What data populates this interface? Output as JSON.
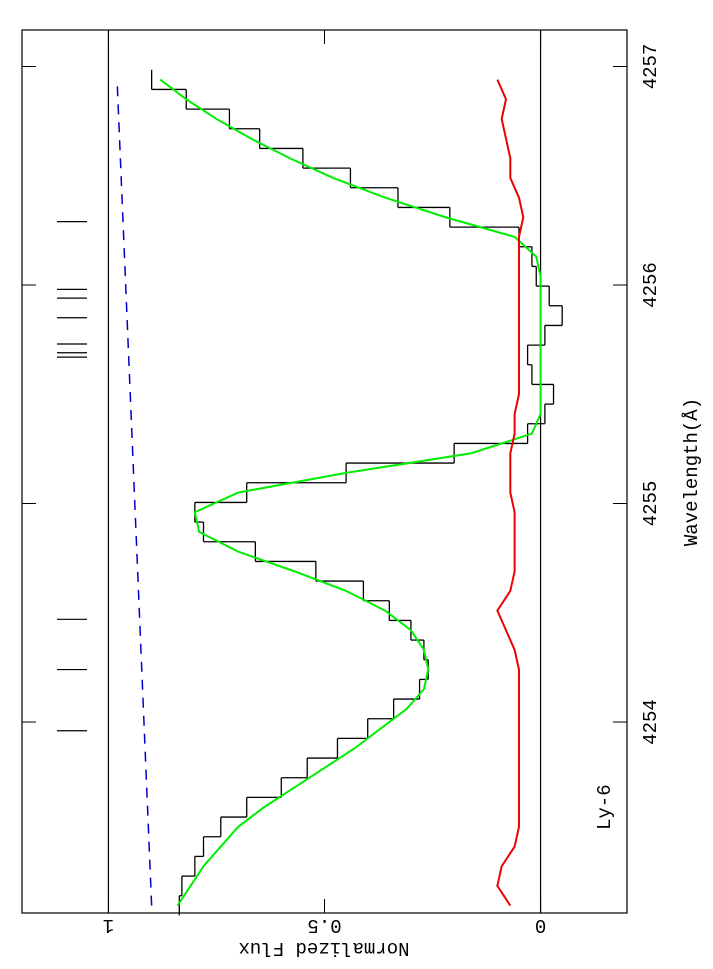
{
  "chart_data": {
    "type": "step",
    "title": "Ly-6",
    "x_label": "Wavelength(Å)",
    "y_label": "Normalized Flux",
    "xlim": [
      4253.126,
      4257.167
    ],
    "ylim": [
      -0.2,
      1.2
    ],
    "xticks": [
      4254,
      4255,
      4256,
      4257
    ],
    "yticks": [
      0,
      0.5,
      1
    ],
    "hlines": [
      0,
      1
    ],
    "x": [
      4253.16,
      4253.25,
      4253.34,
      4253.43,
      4253.52,
      4253.61,
      4253.7,
      4253.79,
      4253.88,
      4253.97,
      4254.06,
      4254.15,
      4254.24,
      4254.33,
      4254.42,
      4254.51,
      4254.6,
      4254.69,
      4254.78,
      4254.87,
      4254.96,
      4255.05,
      4255.14,
      4255.23,
      4255.32,
      4255.41,
      4255.5,
      4255.59,
      4255.68,
      4255.77,
      4255.86,
      4255.95,
      4256.04,
      4256.13,
      4256.22,
      4256.31,
      4256.4,
      4256.49,
      4256.58,
      4256.67,
      4256.76,
      4256.85,
      4256.94
    ],
    "series": [
      {
        "color": "#000000",
        "style": "step",
        "values": [
          0.836,
          0.83,
          0.8,
          0.78,
          0.74,
          0.68,
          0.6,
          0.54,
          0.47,
          0.4,
          0.34,
          0.28,
          0.26,
          0.27,
          0.3,
          0.35,
          0.41,
          0.52,
          0.66,
          0.78,
          0.8,
          0.68,
          0.45,
          0.2,
          0.03,
          -0.01,
          -0.03,
          0.02,
          0.03,
          -0.01,
          -0.05,
          -0.02,
          0.01,
          0.02,
          0.05,
          0.21,
          0.33,
          0.44,
          0.55,
          0.65,
          0.72,
          0.82,
          0.9
        ]
      },
      {
        "color": "#00ee00",
        "style": "line",
        "values": [
          0.84,
          0.81,
          0.78,
          0.74,
          0.7,
          0.64,
          0.57,
          0.5,
          0.43,
          0.37,
          0.31,
          0.27,
          0.26,
          0.27,
          0.3,
          0.36,
          0.45,
          0.57,
          0.7,
          0.79,
          0.8,
          0.7,
          0.45,
          0.16,
          0.02,
          0.0,
          0.0,
          0.0,
          0.0,
          0.0,
          0.0,
          0.0,
          0.0,
          0.01,
          0.06,
          0.22,
          0.36,
          0.48,
          0.58,
          0.67,
          0.75,
          0.82,
          0.88
        ]
      },
      {
        "color": "#ee0000",
        "style": "line",
        "values": [
          0.07,
          0.1,
          0.09,
          0.06,
          0.05,
          0.05,
          0.05,
          0.05,
          0.05,
          0.05,
          0.05,
          0.05,
          0.05,
          0.06,
          0.08,
          0.1,
          0.07,
          0.06,
          0.06,
          0.06,
          0.06,
          0.07,
          0.07,
          0.07,
          0.06,
          0.06,
          0.05,
          0.05,
          0.05,
          0.05,
          0.05,
          0.05,
          0.05,
          0.05,
          0.05,
          0.04,
          0.05,
          0.07,
          0.07,
          0.08,
          0.09,
          0.08,
          0.1
        ]
      }
    ],
    "continuum": {
      "color": "#0000cc",
      "x": [
        4253.16,
        4256.94
      ],
      "values": [
        0.9,
        0.98
      ]
    },
    "components": [
      4253.96,
      4254.24,
      4254.47,
      4255.67,
      4255.69,
      4255.73,
      4255.85,
      4255.94,
      4255.98,
      4256.29
    ]
  }
}
